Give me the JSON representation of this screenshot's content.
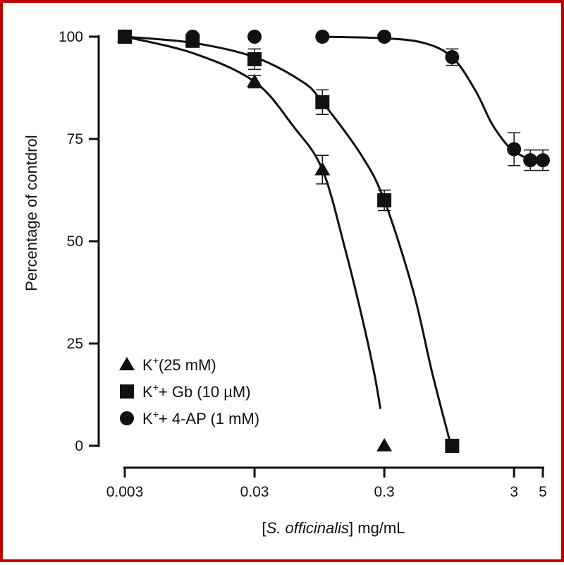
{
  "chart_data": {
    "type": "scatter",
    "title": "",
    "ylabel": "Percentage of contdrol",
    "xlabel": {
      "prefix": "[",
      "italic": "S. officinalis",
      "suffix": "] mg/mL"
    },
    "x_scale": "log",
    "xlim": [
      0.003,
      5
    ],
    "ylim": [
      0,
      100
    ],
    "x_ticks": [
      {
        "value": 0.003,
        "label": "0.003"
      },
      {
        "value": 0.03,
        "label": "0.03"
      },
      {
        "value": 0.3,
        "label": "0.3"
      },
      {
        "value": 3,
        "label": "3"
      },
      {
        "value": 5,
        "label": "5"
      }
    ],
    "y_ticks": [
      {
        "value": 0,
        "label": "0"
      },
      {
        "value": 25,
        "label": "25"
      },
      {
        "value": 50,
        "label": "50"
      },
      {
        "value": 75,
        "label": "75"
      },
      {
        "value": 100,
        "label": "100"
      }
    ],
    "grid": false,
    "legend_position": "bottom-left",
    "series": [
      {
        "name": "K⁺(25 mM)",
        "legend": {
          "base": "K",
          "sup": "+",
          "rest": "(25 mM)"
        },
        "marker": "triangle",
        "color": "#111111",
        "points": [
          {
            "x": 0.003,
            "y": 100,
            "err": 0
          },
          {
            "x": 0.03,
            "y": 89,
            "err": 1.5
          },
          {
            "x": 0.1,
            "y": 67.5,
            "err": 3.5
          },
          {
            "x": 0.3,
            "y": 0,
            "err": 0
          }
        ],
        "curve": [
          [
            0.003,
            100
          ],
          [
            0.01,
            96
          ],
          [
            0.03,
            89
          ],
          [
            0.06,
            78
          ],
          [
            0.1,
            67.5
          ],
          [
            0.15,
            48
          ],
          [
            0.2,
            32
          ],
          [
            0.25,
            18
          ],
          [
            0.28,
            9
          ]
        ]
      },
      {
        "name": "K⁺+ Gb (10 µM)",
        "legend": {
          "base": "K",
          "sup": "+",
          "rest": "+ Gb (10 µM)"
        },
        "marker": "square",
        "color": "#111111",
        "points": [
          {
            "x": 0.003,
            "y": 100,
            "err": 0
          },
          {
            "x": 0.01,
            "y": 99,
            "err": 1.5
          },
          {
            "x": 0.03,
            "y": 94.5,
            "err": 2.5
          },
          {
            "x": 0.1,
            "y": 84,
            "err": 3
          },
          {
            "x": 0.3,
            "y": 60,
            "err": 2.5
          },
          {
            "x": 1,
            "y": 0,
            "err": 0
          }
        ],
        "curve": [
          [
            0.003,
            100
          ],
          [
            0.01,
            98.5
          ],
          [
            0.03,
            95
          ],
          [
            0.07,
            89
          ],
          [
            0.1,
            84
          ],
          [
            0.2,
            71
          ],
          [
            0.3,
            60
          ],
          [
            0.5,
            38
          ],
          [
            0.7,
            18
          ],
          [
            0.98,
            0
          ]
        ]
      },
      {
        "name": "K⁺+ 4-AP (1 mM)",
        "legend": {
          "base": "K",
          "sup": "+",
          "rest": "+ 4-AP (1 mM)"
        },
        "marker": "circle",
        "color": "#111111",
        "points": [
          {
            "x": 0.01,
            "y": 100,
            "err": 0
          },
          {
            "x": 0.03,
            "y": 100,
            "err": 0
          },
          {
            "x": 0.1,
            "y": 100,
            "err": 0
          },
          {
            "x": 0.3,
            "y": 100,
            "err": 0
          },
          {
            "x": 1,
            "y": 95,
            "err": 2
          },
          {
            "x": 3,
            "y": 72.5,
            "err": 4
          },
          {
            "x": 4,
            "y": 69.8,
            "err": 2.5
          },
          {
            "x": 5,
            "y": 69.8,
            "err": 2.5
          }
        ],
        "curve": [
          [
            0.1,
            100
          ],
          [
            0.3,
            99.6
          ],
          [
            0.6,
            98.5
          ],
          [
            1,
            95
          ],
          [
            1.5,
            87
          ],
          [
            2,
            79
          ],
          [
            2.5,
            74.5
          ],
          [
            3,
            72
          ],
          [
            4,
            70
          ],
          [
            5,
            69.8
          ]
        ]
      }
    ]
  }
}
